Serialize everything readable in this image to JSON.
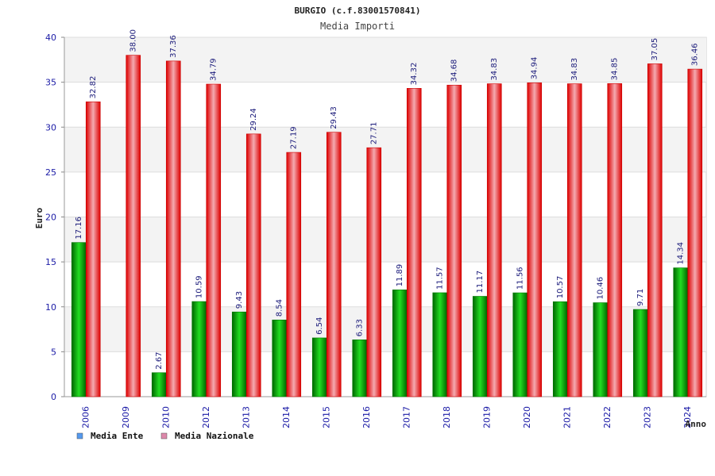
{
  "chart_data": {
    "type": "bar",
    "title": "BURGIO (c.f.83001570841)",
    "subtitle": "Media Importi",
    "ylabel": "Euro",
    "xlabel": "Anno",
    "ylim": [
      0,
      40
    ],
    "yticks": [
      0,
      5,
      10,
      15,
      20,
      25,
      30,
      35,
      40
    ],
    "grid": true,
    "legend_position": "bottom-left",
    "categories": [
      "2006",
      "2009",
      "2010",
      "2012",
      "2013",
      "2014",
      "2015",
      "2016",
      "2017",
      "2018",
      "2019",
      "2020",
      "2021",
      "2022",
      "2023",
      "2024"
    ],
    "series": [
      {
        "name": "Media Ente",
        "color": "#00aa00",
        "legend_color": "#5599ee",
        "values": [
          17.16,
          null,
          2.67,
          10.59,
          9.43,
          8.54,
          6.54,
          6.33,
          11.89,
          11.57,
          11.17,
          11.56,
          10.57,
          10.46,
          9.71,
          14.34
        ],
        "labels": [
          "17.16",
          "",
          "2.67",
          "10.59",
          "9.43",
          "8.54",
          "6.54",
          "6.33",
          "11.89",
          "11.57",
          "11.17",
          "11.56",
          "10.57",
          "10.46",
          "9.71",
          "14.34"
        ]
      },
      {
        "name": "Media Nazionale",
        "color": "#ee0000",
        "legend_color": "#dd88aa",
        "values": [
          32.82,
          38.0,
          37.36,
          34.79,
          29.24,
          27.19,
          29.43,
          27.71,
          34.32,
          34.68,
          34.83,
          34.94,
          34.83,
          34.85,
          37.05,
          36.46
        ],
        "labels": [
          "32.82",
          "38.00",
          "37.36",
          "34.79",
          "29.24",
          "27.19",
          "29.43",
          "27.71",
          "34.32",
          "34.68",
          "34.83",
          "34.94",
          "34.83",
          "34.85",
          "37.05",
          "36.46"
        ]
      }
    ]
  }
}
